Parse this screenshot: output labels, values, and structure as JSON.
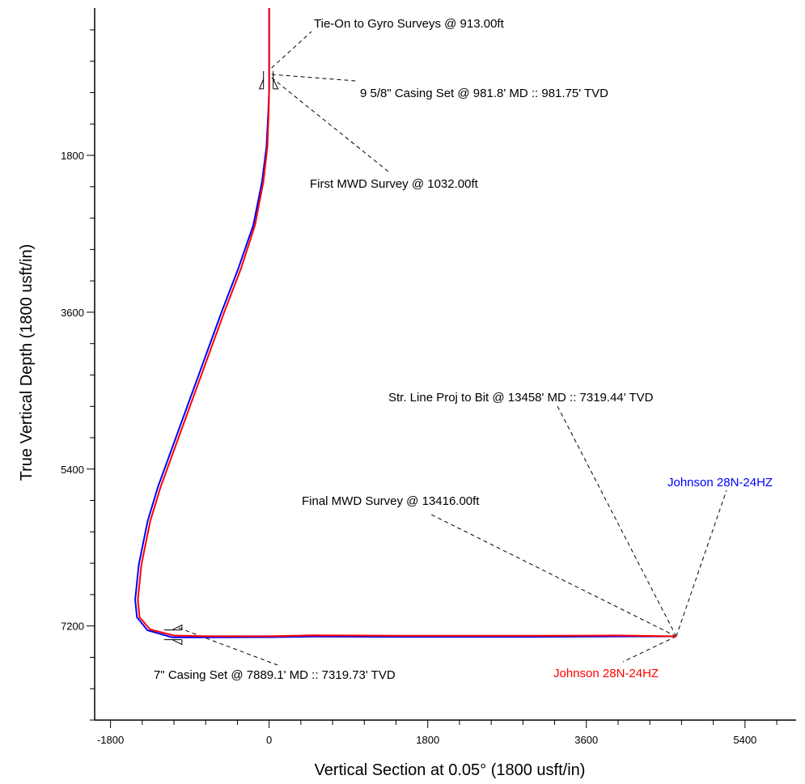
{
  "chart_data": {
    "type": "line",
    "xlabel": "Vertical Section at 0.05° (1800 usft/in)",
    "ylabel": "True Vertical Depth (1800 usft/in)",
    "xlim": [
      -1980,
      5980
    ],
    "ylim": [
      110,
      8280
    ],
    "y_inverted": true,
    "x_ticks": [
      -1800,
      0,
      1800,
      3600,
      5400
    ],
    "y_ticks": [
      1800,
      3600,
      5400,
      7200
    ],
    "grid": false,
    "series": [
      {
        "name": "Johnson 28N-24HZ",
        "color": "#0000ff",
        "points": [
          [
            0,
            110
          ],
          [
            0,
            700
          ],
          [
            0,
            913
          ],
          [
            0,
            981.75
          ],
          [
            0,
            1032
          ],
          [
            -10,
            1300
          ],
          [
            -30,
            1700
          ],
          [
            -80,
            2100
          ],
          [
            -180,
            2600
          ],
          [
            -350,
            3100
          ],
          [
            -540,
            3600
          ],
          [
            -720,
            4100
          ],
          [
            -900,
            4600
          ],
          [
            -1080,
            5100
          ],
          [
            -1260,
            5600
          ],
          [
            -1380,
            6000
          ],
          [
            -1480,
            6500
          ],
          [
            -1520,
            6900
          ],
          [
            -1500,
            7100
          ],
          [
            -1380,
            7250
          ],
          [
            -1100,
            7330
          ],
          [
            -700,
            7330
          ],
          [
            0,
            7328
          ],
          [
            500,
            7322
          ],
          [
            1500,
            7325
          ],
          [
            3000,
            7325
          ],
          [
            4000,
            7320
          ],
          [
            4620,
            7319.44
          ]
        ]
      },
      {
        "name": "Johnson 28N-24HZ",
        "color": "#ff0000",
        "points": [
          [
            0,
            110
          ],
          [
            0,
            700
          ],
          [
            0,
            913
          ],
          [
            0,
            981.75
          ],
          [
            0,
            1032
          ],
          [
            -5,
            1300
          ],
          [
            -20,
            1700
          ],
          [
            -65,
            2100
          ],
          [
            -160,
            2600
          ],
          [
            -320,
            3100
          ],
          [
            -510,
            3600
          ],
          [
            -690,
            4100
          ],
          [
            -870,
            4600
          ],
          [
            -1050,
            5100
          ],
          [
            -1230,
            5600
          ],
          [
            -1350,
            6000
          ],
          [
            -1450,
            6500
          ],
          [
            -1490,
            6900
          ],
          [
            -1470,
            7100
          ],
          [
            -1350,
            7240
          ],
          [
            -1080,
            7310
          ],
          [
            -700,
            7318
          ],
          [
            0,
            7318
          ],
          [
            500,
            7308
          ],
          [
            1500,
            7312
          ],
          [
            3000,
            7312
          ],
          [
            4000,
            7310
          ],
          [
            4620,
            7319.44
          ]
        ]
      }
    ],
    "annotations": [
      {
        "text": "Tie-On to Gyro Surveys @ 913.00ft",
        "x": 0,
        "y": 913
      },
      {
        "text": "9 5/8\" Casing Set @ 981.8' MD :: 981.75' TVD",
        "x": 0,
        "y": 981.75
      },
      {
        "text": "First MWD Survey @ 1032.00ft",
        "x": 0,
        "y": 1032
      },
      {
        "text": "Str. Line Proj to Bit @ 13458' MD :: 7319.44' TVD",
        "x": 4620,
        "y": 7319.44
      },
      {
        "text": "Final MWD Survey @ 13416.00ft",
        "x": 4620,
        "y": 7319.44
      },
      {
        "text": "7\" Casing Set @ 7889.1' MD :: 7319.73' TVD",
        "x": -1100,
        "y": 7319.73
      }
    ],
    "legend_labels": [
      {
        "text": "Johnson 28N-24HZ",
        "color": "#0000ff"
      },
      {
        "text": "Johnson 28N-24HZ",
        "color": "#ff0000"
      }
    ]
  }
}
